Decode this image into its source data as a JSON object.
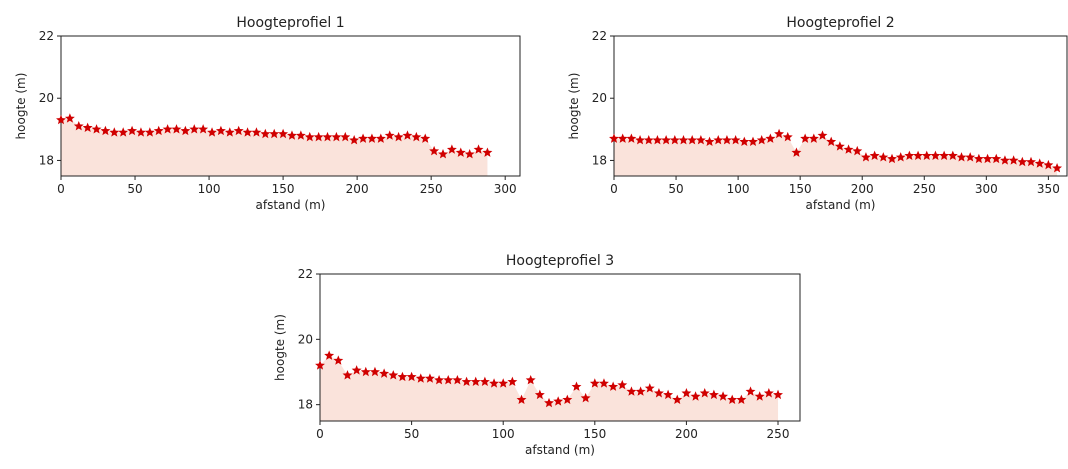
{
  "chart_data": [
    {
      "type": "area",
      "title": "Hoogteprofiel 1",
      "xlabel": "afstand (m)",
      "ylabel": "hoogte (m)",
      "xlim": [
        0,
        310
      ],
      "ylim": [
        17.5,
        22
      ],
      "xticks": [
        0,
        50,
        100,
        150,
        200,
        250,
        300
      ],
      "yticks": [
        18,
        20,
        22
      ],
      "colors": {
        "fill": "#fae3db",
        "marker": "#d00000",
        "axis": "#222222"
      },
      "grid": false,
      "marker": "star",
      "x": [
        0,
        6,
        12,
        18,
        24,
        30,
        36,
        42,
        48,
        54,
        60,
        66,
        72,
        78,
        84,
        90,
        96,
        102,
        108,
        114,
        120,
        126,
        132,
        138,
        144,
        150,
        156,
        162,
        168,
        174,
        180,
        186,
        192,
        198,
        204,
        210,
        216,
        222,
        228,
        234,
        240,
        246,
        252,
        258,
        264,
        270,
        276,
        282,
        288
      ],
      "y": [
        19.3,
        19.35,
        19.1,
        19.05,
        19.0,
        18.95,
        18.9,
        18.9,
        18.95,
        18.9,
        18.9,
        18.95,
        19.0,
        19.0,
        18.95,
        19.0,
        19.0,
        18.9,
        18.95,
        18.9,
        18.95,
        18.9,
        18.9,
        18.85,
        18.85,
        18.85,
        18.8,
        18.8,
        18.75,
        18.75,
        18.75,
        18.75,
        18.75,
        18.65,
        18.7,
        18.7,
        18.7,
        18.8,
        18.75,
        18.8,
        18.75,
        18.7,
        18.3,
        18.2,
        18.35,
        18.25,
        18.2,
        18.35,
        18.25
      ]
    },
    {
      "type": "area",
      "title": "Hoogteprofiel 2",
      "xlabel": "afstand (m)",
      "ylabel": "hoogte (m)",
      "xlim": [
        0,
        365
      ],
      "ylim": [
        17.5,
        22
      ],
      "xticks": [
        0,
        50,
        100,
        150,
        200,
        250,
        300,
        350
      ],
      "yticks": [
        18,
        20,
        22
      ],
      "colors": {
        "fill": "#fae3db",
        "marker": "#d00000",
        "axis": "#222222"
      },
      "grid": false,
      "marker": "star",
      "x": [
        0,
        7,
        14,
        21,
        28,
        35,
        42,
        49,
        56,
        63,
        70,
        77,
        84,
        91,
        98,
        105,
        112,
        119,
        126,
        133,
        140,
        147,
        154,
        161,
        168,
        175,
        182,
        189,
        196,
        203,
        210,
        217,
        224,
        231,
        238,
        245,
        252,
        259,
        266,
        273,
        280,
        287,
        294,
        301,
        308,
        315,
        322,
        329,
        336,
        343,
        350,
        357
      ],
      "y": [
        18.7,
        18.7,
        18.7,
        18.65,
        18.65,
        18.65,
        18.65,
        18.65,
        18.65,
        18.65,
        18.65,
        18.6,
        18.65,
        18.65,
        18.65,
        18.6,
        18.6,
        18.65,
        18.7,
        18.85,
        18.75,
        18.25,
        18.7,
        18.7,
        18.8,
        18.6,
        18.45,
        18.35,
        18.3,
        18.1,
        18.15,
        18.1,
        18.05,
        18.1,
        18.15,
        18.15,
        18.15,
        18.15,
        18.15,
        18.15,
        18.1,
        18.1,
        18.05,
        18.05,
        18.05,
        18.0,
        18.0,
        17.95,
        17.95,
        17.9,
        17.85,
        17.75
      ]
    },
    {
      "type": "area",
      "title": "Hoogteprofiel 3",
      "xlabel": "afstand (m)",
      "ylabel": "hoogte (m)",
      "xlim": [
        0,
        262
      ],
      "ylim": [
        17.5,
        22
      ],
      "xticks": [
        0,
        50,
        100,
        150,
        200,
        250
      ],
      "yticks": [
        18,
        20,
        22
      ],
      "colors": {
        "fill": "#fae3db",
        "marker": "#d00000",
        "axis": "#222222"
      },
      "grid": false,
      "marker": "star",
      "x": [
        0,
        5,
        10,
        15,
        20,
        25,
        30,
        35,
        40,
        45,
        50,
        55,
        60,
        65,
        70,
        75,
        80,
        85,
        90,
        95,
        100,
        105,
        110,
        115,
        120,
        125,
        130,
        135,
        140,
        145,
        150,
        155,
        160,
        165,
        170,
        175,
        180,
        185,
        190,
        195,
        200,
        205,
        210,
        215,
        220,
        225,
        230,
        235,
        240,
        245,
        250
      ],
      "y": [
        19.2,
        19.5,
        19.35,
        18.9,
        19.05,
        19.0,
        19.0,
        18.95,
        18.9,
        18.85,
        18.85,
        18.8,
        18.8,
        18.75,
        18.75,
        18.75,
        18.7,
        18.7,
        18.7,
        18.65,
        18.65,
        18.7,
        18.15,
        18.75,
        18.3,
        18.05,
        18.1,
        18.15,
        18.55,
        18.2,
        18.65,
        18.65,
        18.55,
        18.6,
        18.4,
        18.4,
        18.5,
        18.35,
        18.3,
        18.15,
        18.35,
        18.25,
        18.35,
        18.3,
        18.25,
        18.15,
        18.15,
        18.4,
        18.25,
        18.35,
        18.3
      ]
    }
  ]
}
